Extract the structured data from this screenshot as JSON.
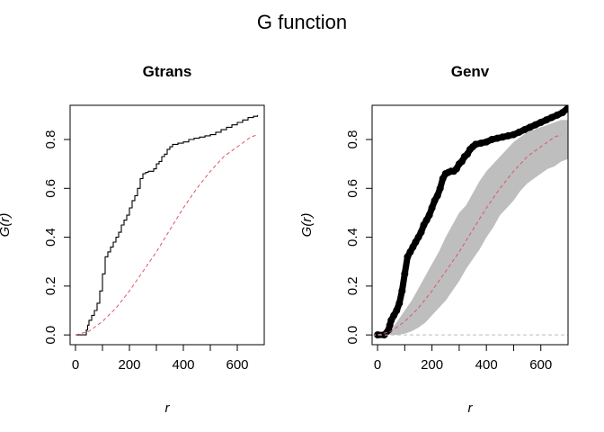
{
  "figure_title": "G function",
  "chart_data": [
    {
      "type": "line",
      "title": "Gtrans",
      "xlabel": "r",
      "ylabel": "G(r)",
      "xlim": [
        -20,
        700
      ],
      "ylim": [
        -0.04,
        0.94
      ],
      "xticks": [
        0,
        200,
        400,
        600
      ],
      "yticks": [
        0.0,
        0.2,
        0.4,
        0.6,
        0.8
      ],
      "grid": false,
      "legend": "none",
      "series": [
        {
          "role": "observed",
          "color": "#000000",
          "style": "step",
          "points": [
            [
              0,
              0
            ],
            [
              25,
              0
            ],
            [
              40,
              0.02
            ],
            [
              45,
              0.04
            ],
            [
              50,
              0.06
            ],
            [
              60,
              0.08
            ],
            [
              70,
              0.1
            ],
            [
              80,
              0.13
            ],
            [
              90,
              0.18
            ],
            [
              100,
              0.25
            ],
            [
              110,
              0.32
            ],
            [
              120,
              0.34
            ],
            [
              130,
              0.36
            ],
            [
              140,
              0.38
            ],
            [
              150,
              0.4
            ],
            [
              160,
              0.42
            ],
            [
              170,
              0.45
            ],
            [
              180,
              0.47
            ],
            [
              190,
              0.49
            ],
            [
              200,
              0.52
            ],
            [
              210,
              0.55
            ],
            [
              220,
              0.57
            ],
            [
              230,
              0.6
            ],
            [
              240,
              0.64
            ],
            [
              250,
              0.66
            ],
            [
              260,
              0.665
            ],
            [
              270,
              0.67
            ],
            [
              280,
              0.67
            ],
            [
              290,
              0.68
            ],
            [
              300,
              0.7
            ],
            [
              310,
              0.71
            ],
            [
              320,
              0.73
            ],
            [
              330,
              0.74
            ],
            [
              340,
              0.76
            ],
            [
              350,
              0.77
            ],
            [
              360,
              0.78
            ],
            [
              380,
              0.785
            ],
            [
              400,
              0.79
            ],
            [
              420,
              0.8
            ],
            [
              440,
              0.805
            ],
            [
              460,
              0.81
            ],
            [
              480,
              0.815
            ],
            [
              500,
              0.82
            ],
            [
              520,
              0.83
            ],
            [
              540,
              0.84
            ],
            [
              560,
              0.85
            ],
            [
              580,
              0.86
            ],
            [
              600,
              0.87
            ],
            [
              620,
              0.88
            ],
            [
              640,
              0.89
            ],
            [
              660,
              0.895
            ],
            [
              675,
              0.9
            ]
          ]
        },
        {
          "role": "theoretical",
          "color": "#DF536B",
          "style": "dashed",
          "points": [
            [
              0,
              0
            ],
            [
              50,
              0.015
            ],
            [
              100,
              0.055
            ],
            [
              150,
              0.11
            ],
            [
              200,
              0.18
            ],
            [
              250,
              0.26
            ],
            [
              300,
              0.34
            ],
            [
              350,
              0.43
            ],
            [
              400,
              0.52
            ],
            [
              450,
              0.6
            ],
            [
              500,
              0.67
            ],
            [
              550,
              0.73
            ],
            [
              600,
              0.77
            ],
            [
              650,
              0.81
            ],
            [
              675,
              0.82
            ]
          ]
        }
      ]
    },
    {
      "type": "line",
      "title": "Genv",
      "xlabel": "r",
      "ylabel": "G(r)",
      "xlim": [
        -20,
        700
      ],
      "ylim": [
        -0.04,
        0.94
      ],
      "xticks": [
        0,
        200,
        400,
        600
      ],
      "yticks": [
        0.0,
        0.2,
        0.4,
        0.6,
        0.8
      ],
      "grid": false,
      "legend": "none",
      "envelope": {
        "color": "#BEBEBE",
        "x": [
          0,
          25,
          50,
          75,
          100,
          125,
          150,
          175,
          200,
          225,
          250,
          275,
          300,
          325,
          350,
          375,
          400,
          425,
          450,
          475,
          500,
          525,
          550,
          575,
          600,
          625,
          650,
          675,
          700
        ],
        "lower": [
          0,
          0,
          0,
          0,
          0.005,
          0.015,
          0.03,
          0.05,
          0.08,
          0.11,
          0.14,
          0.18,
          0.22,
          0.27,
          0.31,
          0.35,
          0.4,
          0.44,
          0.49,
          0.52,
          0.55,
          0.59,
          0.62,
          0.64,
          0.66,
          0.68,
          0.69,
          0.71,
          0.72
        ],
        "upper": [
          0,
          0,
          0.02,
          0.06,
          0.1,
          0.14,
          0.19,
          0.24,
          0.29,
          0.34,
          0.4,
          0.45,
          0.5,
          0.53,
          0.58,
          0.63,
          0.67,
          0.7,
          0.73,
          0.76,
          0.79,
          0.81,
          0.83,
          0.84,
          0.85,
          0.86,
          0.87,
          0.88,
          0.88
        ]
      },
      "series": [
        {
          "role": "observed",
          "color": "#000000",
          "style": "thick-points",
          "points": [
            [
              0,
              0
            ],
            [
              25,
              0
            ],
            [
              40,
              0.02
            ],
            [
              45,
              0.04
            ],
            [
              50,
              0.06
            ],
            [
              60,
              0.08
            ],
            [
              70,
              0.1
            ],
            [
              80,
              0.13
            ],
            [
              90,
              0.18
            ],
            [
              100,
              0.25
            ],
            [
              110,
              0.32
            ],
            [
              120,
              0.34
            ],
            [
              130,
              0.36
            ],
            [
              140,
              0.38
            ],
            [
              150,
              0.4
            ],
            [
              160,
              0.42
            ],
            [
              170,
              0.45
            ],
            [
              180,
              0.47
            ],
            [
              190,
              0.49
            ],
            [
              200,
              0.52
            ],
            [
              210,
              0.55
            ],
            [
              220,
              0.57
            ],
            [
              230,
              0.6
            ],
            [
              240,
              0.64
            ],
            [
              250,
              0.66
            ],
            [
              260,
              0.665
            ],
            [
              270,
              0.67
            ],
            [
              280,
              0.67
            ],
            [
              290,
              0.68
            ],
            [
              300,
              0.7
            ],
            [
              310,
              0.71
            ],
            [
              320,
              0.73
            ],
            [
              330,
              0.74
            ],
            [
              340,
              0.76
            ],
            [
              350,
              0.77
            ],
            [
              360,
              0.78
            ],
            [
              380,
              0.785
            ],
            [
              400,
              0.79
            ],
            [
              420,
              0.8
            ],
            [
              440,
              0.805
            ],
            [
              460,
              0.81
            ],
            [
              480,
              0.815
            ],
            [
              500,
              0.82
            ],
            [
              520,
              0.83
            ],
            [
              540,
              0.84
            ],
            [
              560,
              0.85
            ],
            [
              580,
              0.86
            ],
            [
              600,
              0.87
            ],
            [
              620,
              0.88
            ],
            [
              640,
              0.89
            ],
            [
              660,
              0.9
            ],
            [
              680,
              0.91
            ],
            [
              700,
              0.93
            ]
          ]
        },
        {
          "role": "theoretical",
          "color": "#DF536B",
          "style": "dashed",
          "points": [
            [
              0,
              0
            ],
            [
              50,
              0.015
            ],
            [
              100,
              0.055
            ],
            [
              150,
              0.11
            ],
            [
              200,
              0.18
            ],
            [
              250,
              0.26
            ],
            [
              300,
              0.34
            ],
            [
              350,
              0.43
            ],
            [
              400,
              0.52
            ],
            [
              450,
              0.6
            ],
            [
              500,
              0.67
            ],
            [
              550,
              0.73
            ],
            [
              600,
              0.77
            ],
            [
              650,
              0.81
            ],
            [
              675,
              0.82
            ]
          ]
        },
        {
          "role": "reference",
          "color": "#BEBEBE",
          "style": "dashed",
          "points": [
            [
              -20,
              0
            ],
            [
              700,
              0
            ]
          ]
        }
      ]
    }
  ]
}
